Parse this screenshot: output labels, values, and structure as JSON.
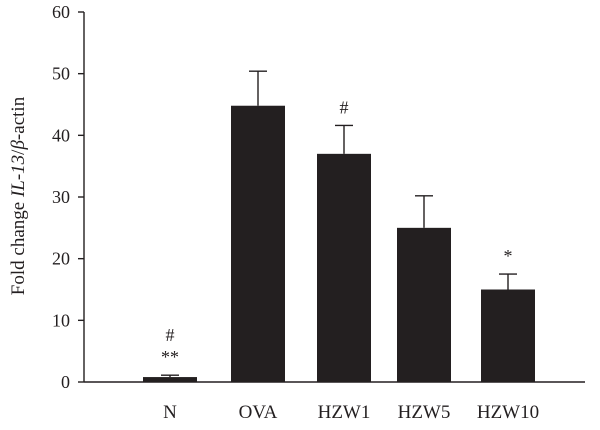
{
  "chart_data": {
    "type": "bar",
    "title": "",
    "xlabel": "",
    "ylabel": {
      "prefix": "Fold change ",
      "gene": "IL-13",
      "slash": "/",
      "beta": "β",
      "suffix": "-actin"
    },
    "ylim": [
      0,
      60
    ],
    "yticks": [
      0,
      10,
      20,
      30,
      40,
      50,
      60
    ],
    "grid": false,
    "categories": [
      "N",
      "OVA",
      "HZW1",
      "HZW5",
      "HZW10"
    ],
    "values": [
      0.8,
      44.8,
      37.0,
      25.0,
      15.0
    ],
    "errors": [
      0.3,
      5.6,
      4.6,
      5.2,
      2.5
    ],
    "annotations": [
      [
        "#",
        "**"
      ],
      [],
      [
        "#"
      ],
      [],
      [
        "*"
      ]
    ],
    "bar_color": "#231f20",
    "axis_color": "#231f20"
  }
}
